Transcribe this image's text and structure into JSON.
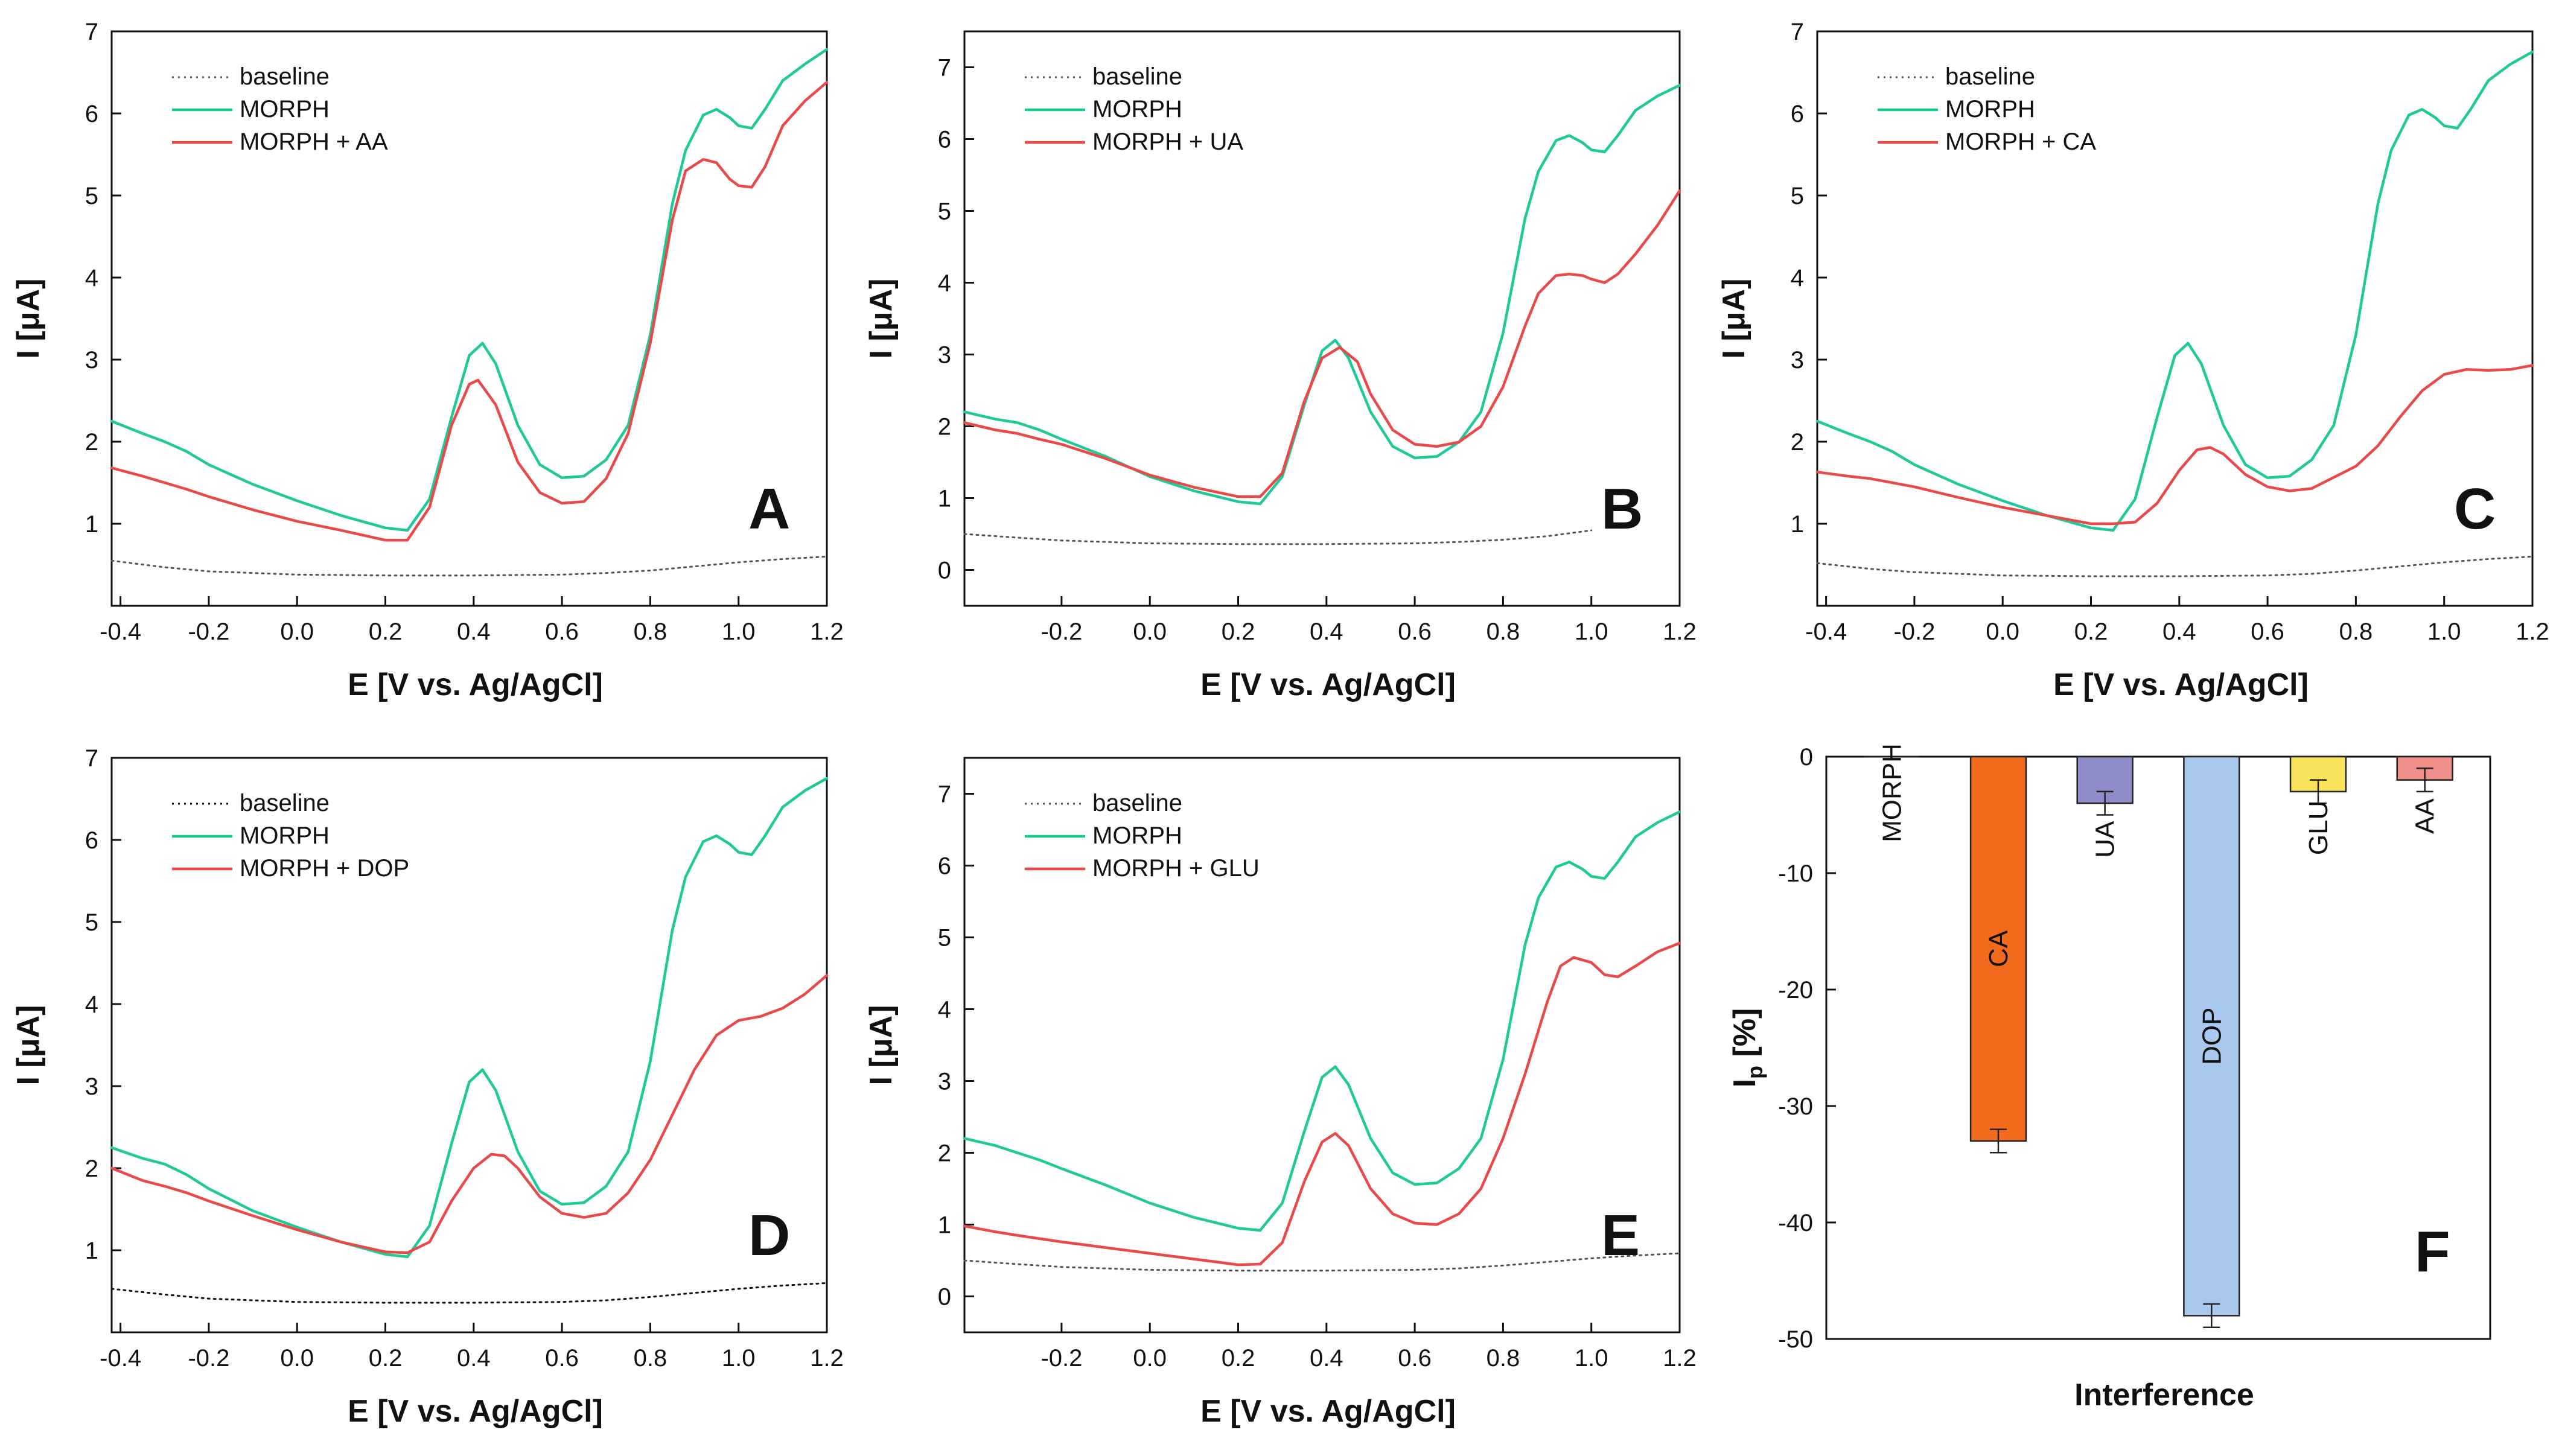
{
  "figure": {
    "description_free": true
  },
  "chart_data": [
    {
      "panel": "A",
      "type": "line",
      "panel_label": "A",
      "xlabel": "E [V vs. Ag/AgCl]",
      "ylabel": "I [μA]",
      "xlim": [
        -0.42,
        1.2
      ],
      "ylim": [
        0,
        7
      ],
      "xticks": [
        -0.4,
        -0.2,
        0.0,
        0.2,
        0.4,
        0.6,
        0.8,
        1.0,
        1.2
      ],
      "yticks": [
        1,
        2,
        3,
        4,
        5,
        6,
        7
      ],
      "legend_position": "top-left",
      "series": [
        {
          "name": "baseline",
          "color": "#555555",
          "style": "dotted",
          "x": [
            -0.42,
            -0.3,
            -0.2,
            0.0,
            0.2,
            0.4,
            0.6,
            0.7,
            0.8,
            0.9,
            1.0,
            1.1,
            1.2
          ],
          "y": [
            0.55,
            0.47,
            0.42,
            0.38,
            0.37,
            0.37,
            0.38,
            0.4,
            0.43,
            0.48,
            0.53,
            0.57,
            0.6
          ]
        },
        {
          "name": "MORPH",
          "color": "#20C997",
          "style": "solid",
          "x": [
            -0.42,
            -0.35,
            -0.3,
            -0.25,
            -0.2,
            -0.1,
            0.0,
            0.1,
            0.2,
            0.25,
            0.3,
            0.35,
            0.39,
            0.42,
            0.45,
            0.5,
            0.55,
            0.6,
            0.65,
            0.7,
            0.75,
            0.8,
            0.85,
            0.88,
            0.92,
            0.95,
            0.98,
            1.0,
            1.03,
            1.06,
            1.1,
            1.15,
            1.2
          ],
          "y": [
            2.25,
            2.1,
            2.0,
            1.88,
            1.72,
            1.48,
            1.28,
            1.1,
            0.95,
            0.92,
            1.3,
            2.3,
            3.05,
            3.2,
            2.95,
            2.2,
            1.72,
            1.56,
            1.58,
            1.78,
            2.2,
            3.3,
            4.9,
            5.55,
            5.98,
            6.05,
            5.95,
            5.85,
            5.82,
            6.05,
            6.4,
            6.6,
            6.78
          ]
        },
        {
          "name": "MORPH + AA",
          "color": "#E84A4A",
          "style": "solid",
          "x": [
            -0.42,
            -0.35,
            -0.3,
            -0.25,
            -0.2,
            -0.1,
            0.0,
            0.1,
            0.2,
            0.25,
            0.3,
            0.35,
            0.39,
            0.41,
            0.45,
            0.5,
            0.55,
            0.6,
            0.65,
            0.7,
            0.75,
            0.8,
            0.85,
            0.88,
            0.92,
            0.95,
            0.98,
            1.0,
            1.03,
            1.06,
            1.1,
            1.15,
            1.2
          ],
          "y": [
            1.68,
            1.58,
            1.5,
            1.42,
            1.33,
            1.17,
            1.03,
            0.92,
            0.8,
            0.8,
            1.2,
            2.2,
            2.7,
            2.75,
            2.45,
            1.75,
            1.38,
            1.25,
            1.27,
            1.55,
            2.1,
            3.2,
            4.7,
            5.3,
            5.44,
            5.4,
            5.2,
            5.12,
            5.1,
            5.35,
            5.85,
            6.15,
            6.38
          ]
        }
      ]
    },
    {
      "panel": "B",
      "type": "line",
      "panel_label": "B",
      "xlabel": "E [V vs. Ag/AgCl]",
      "ylabel": "I [μA]",
      "xlim": [
        -0.42,
        1.2
      ],
      "ylim": [
        -0.5,
        7.5
      ],
      "xticks": [
        -0.2,
        0.0,
        0.2,
        0.4,
        0.6,
        0.8,
        1.0,
        1.2
      ],
      "yticks": [
        0,
        1,
        2,
        3,
        4,
        5,
        6,
        7
      ],
      "legend_position": "top-left",
      "series": [
        {
          "name": "baseline",
          "color": "#555555",
          "style": "dotted",
          "x": [
            -0.42,
            -0.3,
            -0.2,
            0.0,
            0.2,
            0.4,
            0.6,
            0.7,
            0.8,
            0.9,
            1.0
          ],
          "y": [
            0.5,
            0.45,
            0.41,
            0.37,
            0.36,
            0.36,
            0.37,
            0.39,
            0.42,
            0.47,
            0.55
          ]
        },
        {
          "name": "MORPH",
          "color": "#20C997",
          "style": "solid",
          "x": [
            -0.42,
            -0.35,
            -0.3,
            -0.25,
            -0.2,
            -0.1,
            0.0,
            0.1,
            0.2,
            0.25,
            0.3,
            0.35,
            0.39,
            0.42,
            0.45,
            0.5,
            0.55,
            0.6,
            0.65,
            0.7,
            0.75,
            0.8,
            0.85,
            0.88,
            0.92,
            0.95,
            0.98,
            1.0,
            1.03,
            1.06,
            1.1,
            1.15,
            1.2
          ],
          "y": [
            2.2,
            2.1,
            2.05,
            1.95,
            1.82,
            1.58,
            1.3,
            1.1,
            0.95,
            0.92,
            1.3,
            2.3,
            3.05,
            3.2,
            2.95,
            2.2,
            1.72,
            1.56,
            1.58,
            1.78,
            2.2,
            3.3,
            4.9,
            5.55,
            5.98,
            6.05,
            5.95,
            5.85,
            5.82,
            6.05,
            6.4,
            6.6,
            6.75
          ]
        },
        {
          "name": "MORPH + UA",
          "color": "#E84A4A",
          "style": "solid",
          "x": [
            -0.42,
            -0.35,
            -0.3,
            -0.25,
            -0.2,
            -0.1,
            0.0,
            0.1,
            0.2,
            0.25,
            0.3,
            0.35,
            0.39,
            0.43,
            0.47,
            0.5,
            0.55,
            0.6,
            0.65,
            0.7,
            0.75,
            0.8,
            0.85,
            0.88,
            0.92,
            0.95,
            0.98,
            1.0,
            1.03,
            1.06,
            1.1,
            1.15,
            1.2
          ],
          "y": [
            2.05,
            1.95,
            1.9,
            1.82,
            1.75,
            1.55,
            1.32,
            1.15,
            1.02,
            1.02,
            1.35,
            2.35,
            2.95,
            3.1,
            2.9,
            2.45,
            1.95,
            1.75,
            1.72,
            1.78,
            2.0,
            2.55,
            3.4,
            3.85,
            4.1,
            4.12,
            4.1,
            4.05,
            4.0,
            4.12,
            4.4,
            4.8,
            5.28
          ]
        }
      ]
    },
    {
      "panel": "C",
      "type": "line",
      "panel_label": "C",
      "xlabel": "E [V vs. Ag/AgCl]",
      "ylabel": "I [μA]",
      "xlim": [
        -0.42,
        1.2
      ],
      "ylim": [
        0,
        7
      ],
      "xticks": [
        -0.4,
        -0.2,
        0.0,
        0.2,
        0.4,
        0.6,
        0.8,
        1.0,
        1.2
      ],
      "yticks": [
        1,
        2,
        3,
        4,
        5,
        6,
        7
      ],
      "legend_position": "top-left",
      "series": [
        {
          "name": "baseline",
          "color": "#555555",
          "style": "dotted",
          "x": [
            -0.42,
            -0.3,
            -0.2,
            0.0,
            0.2,
            0.4,
            0.6,
            0.7,
            0.8,
            0.9,
            1.0,
            1.1,
            1.2
          ],
          "y": [
            0.52,
            0.45,
            0.41,
            0.37,
            0.36,
            0.36,
            0.37,
            0.39,
            0.43,
            0.48,
            0.53,
            0.57,
            0.6
          ]
        },
        {
          "name": "MORPH",
          "color": "#20C997",
          "style": "solid",
          "x": [
            -0.42,
            -0.35,
            -0.3,
            -0.25,
            -0.2,
            -0.1,
            0.0,
            0.1,
            0.2,
            0.25,
            0.3,
            0.35,
            0.39,
            0.42,
            0.45,
            0.5,
            0.55,
            0.6,
            0.65,
            0.7,
            0.75,
            0.8,
            0.85,
            0.88,
            0.92,
            0.95,
            0.98,
            1.0,
            1.03,
            1.06,
            1.1,
            1.15,
            1.2
          ],
          "y": [
            2.25,
            2.1,
            2.0,
            1.88,
            1.72,
            1.48,
            1.28,
            1.1,
            0.95,
            0.92,
            1.3,
            2.3,
            3.05,
            3.2,
            2.95,
            2.2,
            1.72,
            1.56,
            1.58,
            1.78,
            2.2,
            3.3,
            4.9,
            5.55,
            5.98,
            6.05,
            5.95,
            5.85,
            5.82,
            6.05,
            6.4,
            6.6,
            6.75
          ]
        },
        {
          "name": "MORPH + CA",
          "color": "#E84A4A",
          "style": "solid",
          "x": [
            -0.42,
            -0.35,
            -0.3,
            -0.2,
            -0.1,
            0.0,
            0.1,
            0.2,
            0.25,
            0.3,
            0.35,
            0.4,
            0.44,
            0.47,
            0.5,
            0.55,
            0.6,
            0.65,
            0.7,
            0.8,
            0.85,
            0.9,
            0.95,
            1.0,
            1.05,
            1.1,
            1.15,
            1.2
          ],
          "y": [
            1.63,
            1.58,
            1.55,
            1.45,
            1.32,
            1.2,
            1.1,
            1.0,
            1.0,
            1.02,
            1.25,
            1.65,
            1.9,
            1.93,
            1.85,
            1.6,
            1.45,
            1.4,
            1.43,
            1.7,
            1.95,
            2.3,
            2.62,
            2.82,
            2.88,
            2.87,
            2.88,
            2.93
          ]
        }
      ]
    },
    {
      "panel": "D",
      "type": "line",
      "panel_label": "D",
      "xlabel": "E [V vs. Ag/AgCl]",
      "ylabel": "I [μA]",
      "xlim": [
        -0.42,
        1.2
      ],
      "ylim": [
        0,
        7
      ],
      "xticks": [
        -0.4,
        -0.2,
        0.0,
        0.2,
        0.4,
        0.6,
        0.8,
        1.0,
        1.2
      ],
      "yticks": [
        1,
        2,
        3,
        4,
        5,
        6,
        7
      ],
      "legend_position": "top-left",
      "series": [
        {
          "name": "baseline",
          "color": "#111111",
          "style": "dotted",
          "x": [
            -0.42,
            -0.3,
            -0.2,
            0.0,
            0.2,
            0.4,
            0.6,
            0.7,
            0.8,
            0.9,
            1.0,
            1.1,
            1.2
          ],
          "y": [
            0.53,
            0.46,
            0.41,
            0.37,
            0.36,
            0.36,
            0.37,
            0.39,
            0.43,
            0.48,
            0.53,
            0.57,
            0.6
          ]
        },
        {
          "name": "MORPH",
          "color": "#20C997",
          "style": "solid",
          "x": [
            -0.42,
            -0.35,
            -0.3,
            -0.25,
            -0.2,
            -0.1,
            0.0,
            0.1,
            0.2,
            0.25,
            0.3,
            0.35,
            0.39,
            0.42,
            0.45,
            0.5,
            0.55,
            0.6,
            0.65,
            0.7,
            0.75,
            0.8,
            0.85,
            0.88,
            0.92,
            0.95,
            0.98,
            1.0,
            1.03,
            1.06,
            1.1,
            1.15,
            1.2
          ],
          "y": [
            2.25,
            2.12,
            2.05,
            1.92,
            1.75,
            1.48,
            1.28,
            1.1,
            0.95,
            0.92,
            1.3,
            2.3,
            3.05,
            3.2,
            2.95,
            2.2,
            1.72,
            1.56,
            1.58,
            1.78,
            2.2,
            3.3,
            4.9,
            5.55,
            5.98,
            6.05,
            5.95,
            5.85,
            5.82,
            6.05,
            6.4,
            6.6,
            6.75
          ]
        },
        {
          "name": "MORPH + DOP",
          "color": "#E84A4A",
          "style": "solid",
          "x": [
            -0.42,
            -0.35,
            -0.3,
            -0.25,
            -0.2,
            -0.1,
            0.0,
            0.1,
            0.2,
            0.25,
            0.3,
            0.35,
            0.4,
            0.44,
            0.47,
            0.5,
            0.55,
            0.6,
            0.65,
            0.7,
            0.75,
            0.8,
            0.85,
            0.9,
            0.95,
            1.0,
            1.05,
            1.1,
            1.15,
            1.2
          ],
          "y": [
            2.0,
            1.85,
            1.78,
            1.7,
            1.6,
            1.42,
            1.25,
            1.1,
            0.98,
            0.97,
            1.1,
            1.6,
            2.0,
            2.17,
            2.15,
            2.0,
            1.65,
            1.45,
            1.4,
            1.45,
            1.7,
            2.1,
            2.65,
            3.2,
            3.62,
            3.8,
            3.85,
            3.95,
            4.12,
            4.35
          ]
        }
      ]
    },
    {
      "panel": "E",
      "type": "line",
      "panel_label": "E",
      "xlabel": "E [V vs. Ag/AgCl]",
      "ylabel": "I [μA]",
      "xlim": [
        -0.42,
        1.2
      ],
      "ylim": [
        -0.5,
        7.5
      ],
      "xticks": [
        -0.2,
        0.0,
        0.2,
        0.4,
        0.6,
        0.8,
        1.0,
        1.2
      ],
      "yticks": [
        0,
        1,
        2,
        3,
        4,
        5,
        6,
        7
      ],
      "legend_position": "top-left",
      "series": [
        {
          "name": "baseline",
          "color": "#555555",
          "style": "dotted",
          "x": [
            -0.42,
            -0.3,
            -0.2,
            0.0,
            0.2,
            0.4,
            0.6,
            0.7,
            0.8,
            0.9,
            1.0,
            1.1,
            1.2
          ],
          "y": [
            0.5,
            0.45,
            0.41,
            0.37,
            0.36,
            0.36,
            0.37,
            0.39,
            0.43,
            0.48,
            0.53,
            0.57,
            0.6
          ]
        },
        {
          "name": "MORPH",
          "color": "#20C997",
          "style": "solid",
          "x": [
            -0.42,
            -0.35,
            -0.3,
            -0.25,
            -0.2,
            -0.1,
            0.0,
            0.1,
            0.2,
            0.25,
            0.3,
            0.35,
            0.39,
            0.42,
            0.45,
            0.5,
            0.55,
            0.6,
            0.65,
            0.7,
            0.75,
            0.8,
            0.85,
            0.88,
            0.92,
            0.95,
            0.98,
            1.0,
            1.03,
            1.06,
            1.1,
            1.15,
            1.2
          ],
          "y": [
            2.2,
            2.1,
            2.0,
            1.9,
            1.78,
            1.55,
            1.3,
            1.1,
            0.95,
            0.92,
            1.3,
            2.3,
            3.05,
            3.2,
            2.95,
            2.2,
            1.72,
            1.56,
            1.58,
            1.78,
            2.2,
            3.3,
            4.9,
            5.55,
            5.98,
            6.05,
            5.95,
            5.85,
            5.82,
            6.05,
            6.4,
            6.6,
            6.75
          ]
        },
        {
          "name": "MORPH + GLU",
          "color": "#E84A4A",
          "style": "solid",
          "x": [
            -0.42,
            -0.35,
            -0.3,
            -0.2,
            -0.1,
            0.0,
            0.1,
            0.2,
            0.25,
            0.3,
            0.35,
            0.39,
            0.42,
            0.45,
            0.5,
            0.55,
            0.6,
            0.65,
            0.7,
            0.75,
            0.8,
            0.85,
            0.9,
            0.93,
            0.96,
            1.0,
            1.03,
            1.06,
            1.1,
            1.15,
            1.2
          ],
          "y": [
            0.98,
            0.9,
            0.85,
            0.76,
            0.68,
            0.6,
            0.52,
            0.44,
            0.45,
            0.75,
            1.6,
            2.15,
            2.27,
            2.1,
            1.5,
            1.15,
            1.02,
            1.0,
            1.15,
            1.5,
            2.2,
            3.1,
            4.1,
            4.6,
            4.72,
            4.65,
            4.48,
            4.45,
            4.6,
            4.8,
            4.92
          ]
        }
      ]
    },
    {
      "panel": "F",
      "type": "bar",
      "panel_label": "F",
      "xlabel": "Interference",
      "ylabel": "Ip [%]",
      "ylabel_main": "I",
      "ylabel_sub": "p",
      "ylabel_tail": " [%]",
      "ylim": [
        -50,
        0
      ],
      "yticks": [
        0,
        -10,
        -20,
        -30,
        -40,
        -50
      ],
      "categories": [
        "MORPH",
        "CA",
        "UA",
        "DOP",
        "GLU",
        "AA"
      ],
      "values": [
        0,
        -33,
        -4,
        -48,
        -3,
        -2
      ],
      "errors": [
        0,
        1.0,
        1.0,
        1.0,
        1.0,
        1.0
      ],
      "colors": [
        "#9e9e9e",
        "#F26A1B",
        "#8E8CC8",
        "#A9C8EE",
        "#F9E35B",
        "#F08E8A"
      ]
    }
  ]
}
